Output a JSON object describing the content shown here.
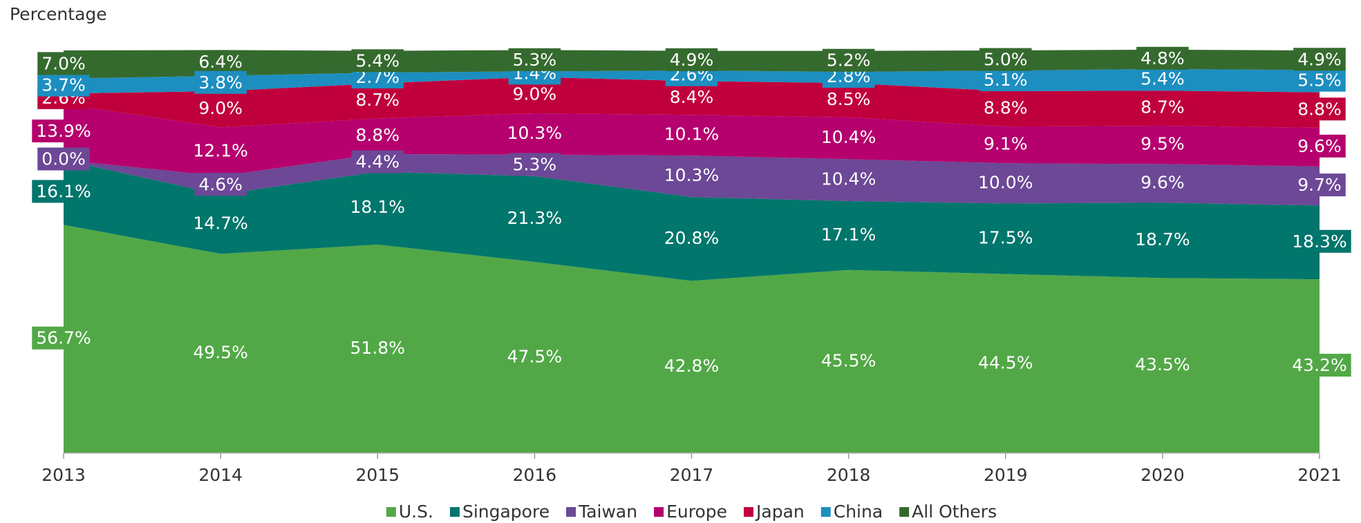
{
  "chart_data": {
    "type": "stacked_area",
    "y_label": "Percentage",
    "categories": [
      "2013",
      "2014",
      "2015",
      "2016",
      "2017",
      "2018",
      "2019",
      "2020",
      "2021"
    ],
    "ylim": [
      0,
      100
    ],
    "series": [
      {
        "name": "U.S.",
        "color": "#52a846",
        "values": [
          56.7,
          49.5,
          51.8,
          47.5,
          42.8,
          45.5,
          44.5,
          43.5,
          43.2
        ],
        "value_labels": [
          "56.7%",
          "49.5%",
          "51.8%",
          "47.5%",
          "42.8%",
          "45.5%",
          "44.5%",
          "43.5%",
          "43.2%"
        ]
      },
      {
        "name": "Singapore",
        "color": "#00766c",
        "values": [
          16.1,
          14.7,
          18.1,
          21.3,
          20.8,
          17.1,
          17.5,
          18.7,
          18.3
        ],
        "value_labels": [
          "16.1%",
          "14.7%",
          "18.1%",
          "21.3%",
          "20.8%",
          "17.1%",
          "17.5%",
          "18.7%",
          "18.3%"
        ]
      },
      {
        "name": "Taiwan",
        "color": "#6c4896",
        "values": [
          0.0,
          4.6,
          4.4,
          5.3,
          10.3,
          10.4,
          10.0,
          9.6,
          9.7
        ],
        "value_labels": [
          "0.0%",
          "4.6%",
          "4.4%",
          "5.3%",
          "10.3%",
          "10.4%",
          "10.0%",
          "9.6%",
          "9.7%"
        ]
      },
      {
        "name": "Europe",
        "color": "#b5006e",
        "values": [
          13.9,
          12.1,
          8.8,
          10.3,
          10.1,
          10.4,
          9.1,
          9.5,
          9.6
        ],
        "value_labels": [
          "13.9%",
          "12.1%",
          "8.8%",
          "10.3%",
          "10.1%",
          "10.4%",
          "9.1%",
          "9.5%",
          "9.6%"
        ]
      },
      {
        "name": "Japan",
        "color": "#c0003c",
        "values": [
          2.6,
          9.0,
          8.7,
          9.0,
          8.4,
          8.5,
          8.8,
          8.7,
          8.8
        ],
        "value_labels": [
          "2.6%",
          "9.0%",
          "8.7%",
          "9.0%",
          "8.4%",
          "8.5%",
          "8.8%",
          "8.7%",
          "8.8%"
        ]
      },
      {
        "name": "China",
        "color": "#1d8ec0",
        "values": [
          3.7,
          3.8,
          2.7,
          1.4,
          2.6,
          2.8,
          5.1,
          5.4,
          5.5
        ],
        "value_labels": [
          "3.7%",
          "3.8%",
          "2.7%",
          "1.4%",
          "2.6%",
          "2.8%",
          "5.1%",
          "5.4%",
          "5.5%"
        ]
      },
      {
        "name": "All Others",
        "color": "#356a2e",
        "values": [
          7.0,
          6.4,
          5.4,
          5.3,
          4.9,
          5.2,
          5.0,
          4.8,
          4.9
        ],
        "value_labels": [
          "7.0%",
          "6.4%",
          "5.4%",
          "5.3%",
          "4.9%",
          "5.2%",
          "5.0%",
          "4.8%",
          "4.9%"
        ]
      }
    ]
  }
}
